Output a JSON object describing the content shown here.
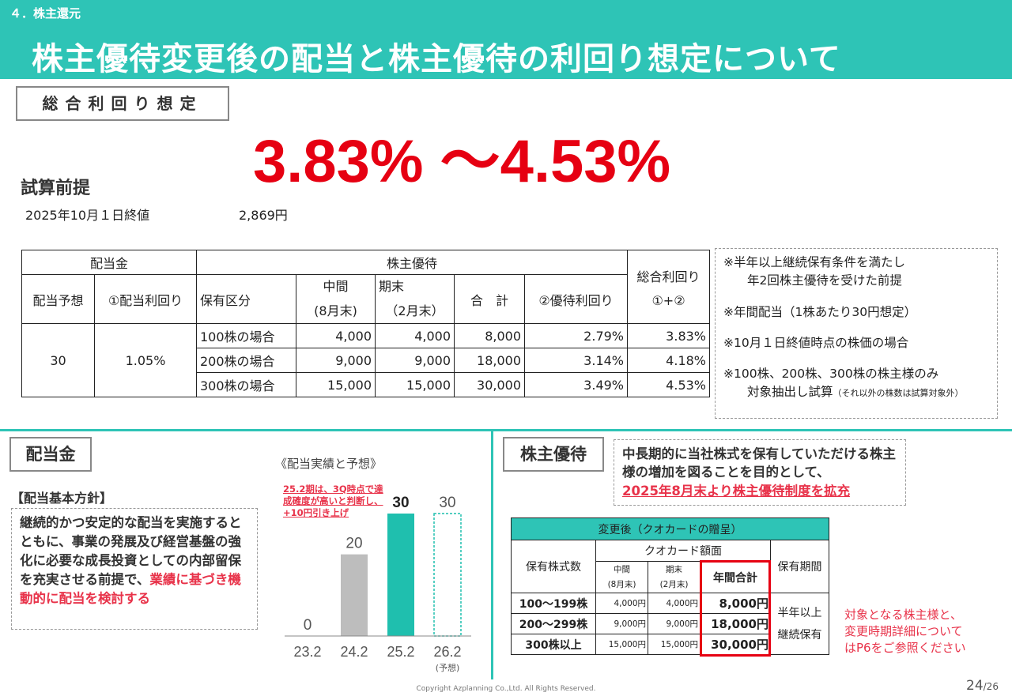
{
  "header": {
    "section": "４．株主還元",
    "title": "株主優待変更後の配当と株主優待の利回り想定について"
  },
  "summary": {
    "label": "総合利回り想定",
    "value": "3.83% ～4.53%",
    "premise_title": "試算前提",
    "premise_date": "2025年10月１日終値",
    "premise_price": "2,869円"
  },
  "table": {
    "h_dividend": "配当金",
    "h_yutai": "株主優待",
    "h_total": "総合利回り",
    "h_total2": "①+②",
    "h_forecast": "配当予想",
    "h_div_yield": "①配当利回り",
    "h_category": "保有区分",
    "h_interim": "中間",
    "h_interim2": "(8月末)",
    "h_final": "期末",
    "h_final2": "（2月末）",
    "h_sum": "合　計",
    "h_yutai_yield": "②優待利回り",
    "forecast": "30",
    "div_yield": "1.05%",
    "rows": [
      {
        "category": "100株の場合",
        "interim": "4,000",
        "final": "4,000",
        "sum": "8,000",
        "yutai_yield": "2.79%",
        "total": "3.83%"
      },
      {
        "category": "200株の場合",
        "interim": "9,000",
        "final": "9,000",
        "sum": "18,000",
        "yutai_yield": "3.14%",
        "total": "4.18%"
      },
      {
        "category": "300株の場合",
        "interim": "15,000",
        "final": "15,000",
        "sum": "30,000",
        "yutai_yield": "3.49%",
        "total": "4.53%"
      }
    ]
  },
  "notes": {
    "n1a": "※半年以上継続保有条件を満たし",
    "n1b": "年2回株主優待を受けた前提",
    "n2": "※年間配当（1株あたり30円想定）",
    "n3": "※10月１日終値時点の株価の場合",
    "n4a": "※100株、200株、300株の株主様のみ",
    "n4b": "対象抽出し試算",
    "n4c": "（それ以外の株数は試算対象外）"
  },
  "dividend": {
    "tag": "配当金",
    "policy_title": "【配当基本方針】",
    "policy_text": "継続的かつ安定的な配当を実施するとともに、事業の発展及び経営基盤の強化に必要な成長投資としての内部留保を充実させる前提で、",
    "policy_red": "業績に基づき機動的に配当を検討する",
    "chart_title": "《配当実績と予想》",
    "chart_note": "25.2期は、3Q時点で達成確度が高いと判断し、+10円引き上げ"
  },
  "chart_data": {
    "type": "bar",
    "categories": [
      "23.2",
      "24.2",
      "25.2",
      "26.2"
    ],
    "values": [
      0,
      20,
      30,
      30
    ],
    "labels": [
      "0",
      "20",
      "30",
      "30"
    ],
    "forecast_label": "(予想)",
    "colors": [
      "#bdbdbd",
      "#bdbdbd",
      "#1fbfae",
      "#1fbfae"
    ]
  },
  "yutai": {
    "tag": "株主優待",
    "desc1": "中長期的に当社株式を保有していただける株主様の増加を図ることを目的として、",
    "desc_red": "2025年8月末より株主優待制度を拡充",
    "table_title": "変更後（クオカードの贈呈）",
    "h_shares": "保有株式数",
    "h_amount": "クオカード額面",
    "h_period": "保有期間",
    "h_interim": "中間",
    "h_interim2": "(8月末)",
    "h_final": "期末",
    "h_final2": "(2月末)",
    "h_annual": "年間合計",
    "period1": "半年以上",
    "period2": "継続保有",
    "rows": [
      {
        "shares": "100～199株",
        "interim": "4,000円",
        "final": "4,000円",
        "annual": "8,000円"
      },
      {
        "shares": "200～299株",
        "interim": "9,000円",
        "final": "9,000円",
        "annual": "18,000円"
      },
      {
        "shares": "300株以上",
        "interim": "15,000円",
        "final": "15,000円",
        "annual": "30,000円"
      }
    ],
    "ref1": "対象となる株主様と、",
    "ref2": "変更時期詳細について",
    "ref3": "はP6をご参照ください"
  },
  "footer": {
    "copyright": "Copyright Azplanning Co.,Ltd. All Rights Reserved.",
    "page": "24",
    "total": "/26"
  },
  "colors": {
    "accent": "#2ec4b6",
    "red": "#e60012",
    "pink": "#e8334a"
  }
}
